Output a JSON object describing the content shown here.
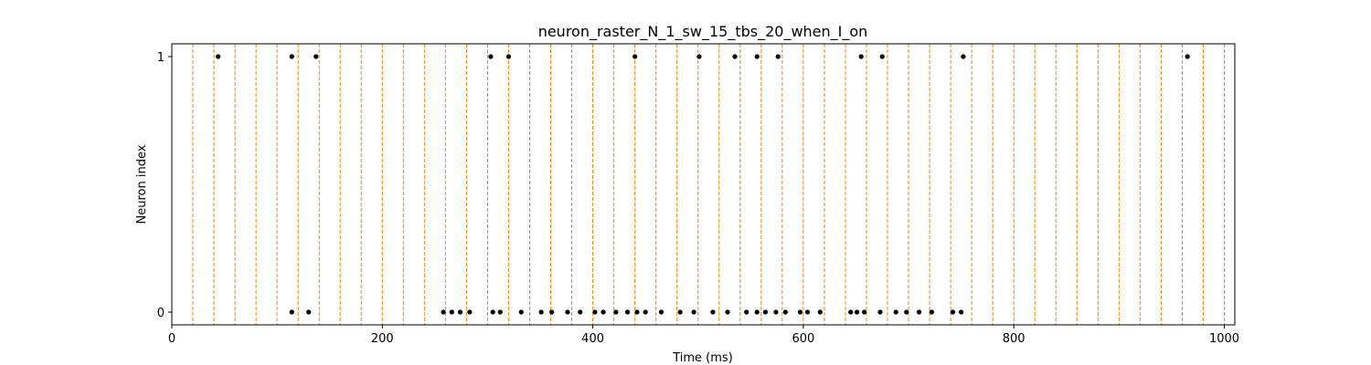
{
  "chart_data": {
    "type": "scatter",
    "title": "neuron_raster_N_1_sw_15_tbs_20_when_I_on",
    "xlabel": "Time (ms)",
    "ylabel": "Neuron index",
    "xlim": [
      0,
      1010
    ],
    "ylim": [
      -0.05,
      1.05
    ],
    "xticks": [
      0,
      200,
      400,
      600,
      800,
      1000
    ],
    "yticks": [
      0,
      1
    ],
    "marker_color": "#000000",
    "stim_line_color": "#ff7f0e",
    "stimulus_times": [
      0,
      20,
      40,
      60,
      80,
      100,
      120,
      140,
      160,
      180,
      200,
      220,
      240,
      260,
      280,
      300,
      320,
      340,
      360,
      380,
      400,
      420,
      440,
      460,
      480,
      500,
      520,
      540,
      560,
      580,
      600,
      620,
      640,
      660,
      680,
      700,
      720,
      740,
      760,
      780,
      800,
      820,
      840,
      860,
      880,
      900,
      920,
      940,
      960,
      980,
      1000
    ],
    "series": [
      {
        "name": "neuron 1",
        "neuron": 1,
        "spike_times": [
          44,
          114,
          137,
          303,
          320,
          440,
          501,
          535,
          556,
          576,
          655,
          675,
          752,
          965
        ]
      },
      {
        "name": "neuron 0",
        "neuron": 0,
        "spike_times": [
          114,
          130,
          258,
          266,
          274,
          283,
          305,
          312,
          332,
          351,
          361,
          376,
          388,
          402,
          410,
          422,
          433,
          442,
          450,
          465,
          483,
          496,
          514,
          528,
          546,
          556,
          564,
          574,
          583,
          597,
          604,
          616,
          645,
          651,
          658,
          673,
          688,
          698,
          710,
          722,
          742,
          750
        ]
      }
    ]
  }
}
